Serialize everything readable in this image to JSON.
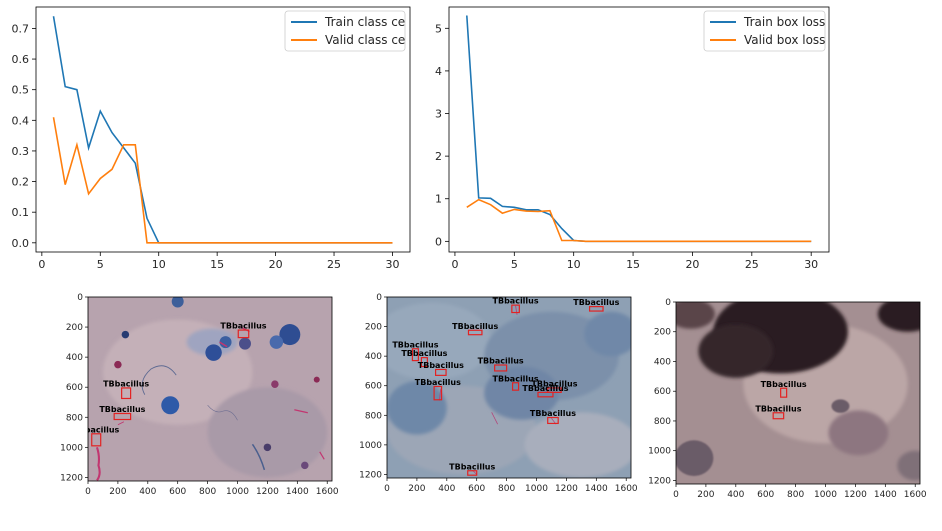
{
  "chart_data": [
    {
      "type": "line",
      "x": [
        1,
        2,
        3,
        4,
        5,
        6,
        7,
        8,
        9,
        10,
        11,
        12,
        13,
        14,
        15,
        16,
        17,
        18,
        19,
        20,
        21,
        22,
        23,
        24,
        25,
        26,
        27,
        28,
        29,
        30
      ],
      "series": [
        {
          "name": "Train class ce",
          "color": "#1f77b4",
          "values": [
            0.74,
            0.51,
            0.5,
            0.31,
            0.43,
            0.36,
            0.31,
            0.26,
            0.08,
            0.0,
            0,
            0,
            0,
            0,
            0,
            0,
            0,
            0,
            0,
            0,
            0,
            0,
            0,
            0,
            0,
            0,
            0,
            0,
            0,
            0
          ]
        },
        {
          "name": "Valid class ce",
          "color": "#ff7f0e",
          "values": [
            0.41,
            0.19,
            0.32,
            0.16,
            0.21,
            0.24,
            0.32,
            0.32,
            0.0,
            0.0,
            0,
            0,
            0,
            0,
            0,
            0,
            0,
            0,
            0,
            0,
            0,
            0,
            0,
            0,
            0,
            0,
            0,
            0,
            0,
            0
          ]
        }
      ],
      "xlim": [
        -0.5,
        31.5
      ],
      "ylim": [
        -0.03,
        0.77
      ],
      "xticks": [
        0,
        5,
        10,
        15,
        20,
        25,
        30
      ],
      "yticks": [
        0.0,
        0.1,
        0.2,
        0.3,
        0.4,
        0.5,
        0.6,
        0.7
      ],
      "ytick_labels": [
        "0.0",
        "0.1",
        "0.2",
        "0.3",
        "0.4",
        "0.5",
        "0.6",
        "0.7"
      ],
      "legend": "top-right",
      "grid": false
    },
    {
      "type": "line",
      "x": [
        1,
        2,
        3,
        4,
        5,
        6,
        7,
        8,
        9,
        10,
        11,
        12,
        13,
        14,
        15,
        16,
        17,
        18,
        19,
        20,
        21,
        22,
        23,
        24,
        25,
        26,
        27,
        28,
        29,
        30
      ],
      "series": [
        {
          "name": "Train box loss",
          "color": "#1f77b4",
          "values": [
            5.3,
            1.02,
            1.01,
            0.82,
            0.8,
            0.74,
            0.74,
            0.63,
            0.3,
            0.02,
            0,
            0,
            0,
            0,
            0,
            0,
            0,
            0,
            0,
            0,
            0,
            0,
            0,
            0,
            0,
            0,
            0,
            0,
            0,
            0
          ]
        },
        {
          "name": "Valid box loss",
          "color": "#ff7f0e",
          "values": [
            0.8,
            0.98,
            0.86,
            0.66,
            0.75,
            0.71,
            0.7,
            0.72,
            0.02,
            0.02,
            0,
            0,
            0,
            0,
            0,
            0,
            0,
            0,
            0,
            0,
            0,
            0,
            0,
            0,
            0,
            0,
            0,
            0,
            0,
            0
          ]
        }
      ],
      "xlim": [
        -0.5,
        31.5
      ],
      "ylim": [
        -0.25,
        5.5
      ],
      "xticks": [
        0,
        5,
        10,
        15,
        20,
        25,
        30
      ],
      "yticks": [
        0,
        1,
        2,
        3,
        4,
        5
      ],
      "ytick_labels": [
        "0",
        "1",
        "2",
        "3",
        "4",
        "5"
      ],
      "legend": "top-right",
      "grid": false
    }
  ],
  "images": [
    {
      "xticks": [
        0,
        200,
        400,
        600,
        800,
        1000,
        1200,
        1400,
        1600
      ],
      "yticks": [
        0,
        200,
        400,
        600,
        800,
        1000,
        1200
      ],
      "xlim": [
        0,
        1632
      ],
      "ylim": [
        0,
        1224
      ],
      "label": "TBbacillus",
      "colors": {
        "bg": "#b7a3ae",
        "stain": "#3b5fa0",
        "box": "#e32222"
      },
      "detections": [
        {
          "cx": 1040,
          "cy": 245,
          "w": 70,
          "h": 50
        },
        {
          "cx": 255,
          "cy": 640,
          "w": 60,
          "h": 70
        },
        {
          "cx": 230,
          "cy": 795,
          "w": 110,
          "h": 40
        },
        {
          "cx": 55,
          "cy": 950,
          "w": 60,
          "h": 80
        }
      ]
    },
    {
      "xticks": [
        0,
        200,
        400,
        600,
        800,
        1000,
        1200,
        1400,
        1600
      ],
      "yticks": [
        0,
        200,
        400,
        600,
        800,
        1000,
        1200
      ],
      "xlim": [
        0,
        1632
      ],
      "ylim": [
        0,
        1224
      ],
      "label": "TBbacillus",
      "colors": {
        "bg": "#8ea0b4",
        "stain": "#4a6c9a",
        "box": "#e32222"
      },
      "detections": [
        {
          "cx": 860,
          "cy": 80,
          "w": 50,
          "h": 50
        },
        {
          "cx": 1400,
          "cy": 80,
          "w": 90,
          "h": 30
        },
        {
          "cx": 590,
          "cy": 240,
          "w": 90,
          "h": 30
        },
        {
          "cx": 190,
          "cy": 390,
          "w": 40,
          "h": 80
        },
        {
          "cx": 250,
          "cy": 440,
          "w": 40,
          "h": 60
        },
        {
          "cx": 360,
          "cy": 510,
          "w": 70,
          "h": 40
        },
        {
          "cx": 760,
          "cy": 480,
          "w": 80,
          "h": 40
        },
        {
          "cx": 860,
          "cy": 605,
          "w": 40,
          "h": 50
        },
        {
          "cx": 1120,
          "cy": 630,
          "w": 90,
          "h": 30
        },
        {
          "cx": 340,
          "cy": 650,
          "w": 50,
          "h": 90
        },
        {
          "cx": 1060,
          "cy": 660,
          "w": 100,
          "h": 30
        },
        {
          "cx": 1110,
          "cy": 835,
          "w": 70,
          "h": 40
        },
        {
          "cx": 570,
          "cy": 1190,
          "w": 60,
          "h": 30
        }
      ]
    },
    {
      "xticks": [
        0,
        200,
        400,
        600,
        800,
        1000,
        1200,
        1400,
        1600
      ],
      "yticks": [
        0,
        200,
        400,
        600,
        800,
        1000,
        1200
      ],
      "xlim": [
        0,
        1632
      ],
      "ylim": [
        0,
        1224
      ],
      "label": "TBbacillus",
      "colors": {
        "bg": "#a48f92",
        "stain": "#2a1f22",
        "box": "#e32222"
      },
      "detections": [
        {
          "cx": 720,
          "cy": 610,
          "w": 40,
          "h": 60
        },
        {
          "cx": 685,
          "cy": 765,
          "w": 70,
          "h": 40
        }
      ]
    }
  ]
}
